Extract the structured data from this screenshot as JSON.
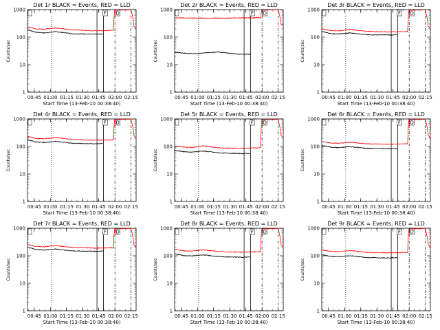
{
  "colors": {
    "events": "#000000",
    "lld": "#ff0000",
    "axes": "#000000",
    "background": "#ffffff"
  },
  "common": {
    "ylabel": "Counts/sec",
    "xlabel": "Start Time (13-Feb-10 00:38:40)",
    "x_tick_labels": [
      "00:45",
      "01:00",
      "01:15",
      "01:30",
      "01:45",
      "02:00",
      "02:15"
    ],
    "y_tick_labels": [
      "1",
      "10",
      "100",
      "1000"
    ],
    "marker_labels": {
      "f_label": "F",
      "d_label": "D"
    }
  },
  "chart_data": [
    {
      "type": "line",
      "title": "Det 1r BLACK = Events, RED = LLD",
      "x_unit": "minutes since 00:38:40",
      "xlim": [
        0,
        101
      ],
      "ylim": [
        1,
        1000
      ],
      "y_scale": "log",
      "grid": false,
      "series": [
        {
          "name": "Events",
          "color": "#000000",
          "x": [
            0,
            8,
            16,
            26,
            42,
            63,
            70
          ],
          "y": [
            185,
            150,
            142,
            158,
            133,
            128,
            130
          ]
        },
        {
          "name": "LLD",
          "color": "#ff0000",
          "x": [
            0,
            8,
            16,
            26,
            42,
            63,
            80,
            81,
            88,
            96,
            99,
            101
          ],
          "y": [
            235,
            200,
            195,
            215,
            185,
            170,
            178,
            950,
            960,
            980,
            250,
            200
          ]
        }
      ],
      "markers": {
        "dotted": [
          22.3
        ],
        "solid": [
          64.6,
          70.6
        ],
        "dashdot": [
          81.3,
          96.3
        ]
      }
    },
    {
      "type": "line",
      "title": "Det 2r BLACK = Events, RED = LLD",
      "x_unit": "minutes since 00:38:40",
      "xlim": [
        0,
        101
      ],
      "ylim": [
        1,
        1000
      ],
      "y_scale": "log",
      "grid": false,
      "series": [
        {
          "name": "Events",
          "color": "#000000",
          "x": [
            0,
            10,
            20,
            30,
            40,
            50,
            60,
            70
          ],
          "y": [
            28,
            26,
            25,
            27,
            29,
            26,
            24,
            24
          ]
        },
        {
          "name": "LLD",
          "color": "#ff0000",
          "x": [
            0,
            16,
            40,
            63,
            80,
            81,
            88,
            96,
            99,
            101
          ],
          "y": [
            500,
            495,
            490,
            500,
            505,
            960,
            970,
            990,
            300,
            260
          ]
        }
      ],
      "markers": {
        "dotted": [
          22.3
        ],
        "solid": [
          64.6,
          70.6
        ],
        "dashdot": [
          81.3,
          96.3
        ]
      }
    },
    {
      "type": "line",
      "title": "Det 3r BLACK = Events, RED = LLD",
      "x_unit": "minutes since 00:38:40",
      "xlim": [
        0,
        101
      ],
      "ylim": [
        1,
        1000
      ],
      "y_scale": "log",
      "grid": false,
      "series": [
        {
          "name": "Events",
          "color": "#000000",
          "x": [
            0,
            8,
            16,
            26,
            42,
            63,
            70
          ],
          "y": [
            160,
            135,
            130,
            142,
            122,
            120,
            122
          ]
        },
        {
          "name": "LLD",
          "color": "#ff0000",
          "x": [
            0,
            8,
            16,
            26,
            42,
            63,
            80,
            81,
            88,
            96,
            99,
            101
          ],
          "y": [
            200,
            175,
            170,
            190,
            162,
            155,
            160,
            950,
            960,
            980,
            250,
            200
          ]
        }
      ],
      "markers": {
        "dotted": [
          22.3
        ],
        "solid": [
          64.6,
          70.6
        ],
        "dashdot": [
          81.3,
          96.3
        ]
      }
    },
    {
      "type": "line",
      "title": "Det 4r BLACK = Events, RED = LLD",
      "x_unit": "minutes since 00:38:40",
      "xlim": [
        0,
        101
      ],
      "ylim": [
        1,
        1000
      ],
      "y_scale": "log",
      "grid": false,
      "series": [
        {
          "name": "Events",
          "color": "#000000",
          "x": [
            0,
            8,
            16,
            26,
            42,
            63,
            70
          ],
          "y": [
            175,
            145,
            140,
            152,
            130,
            125,
            128
          ]
        },
        {
          "name": "LLD",
          "color": "#ff0000",
          "x": [
            0,
            8,
            16,
            26,
            42,
            63,
            80,
            81,
            88,
            96,
            99,
            101
          ],
          "y": [
            230,
            195,
            190,
            210,
            180,
            168,
            175,
            950,
            960,
            980,
            250,
            200
          ]
        }
      ],
      "markers": {
        "dotted": [
          22.3
        ],
        "solid": [
          64.6,
          70.6
        ],
        "dashdot": [
          81.3,
          96.3
        ]
      }
    },
    {
      "type": "line",
      "title": "Det 5r BLACK = Events, RED = LLD",
      "x_unit": "minutes since 00:38:40",
      "xlim": [
        0,
        101
      ],
      "ylim": [
        1,
        1000
      ],
      "y_scale": "log",
      "grid": false,
      "series": [
        {
          "name": "Events",
          "color": "#000000",
          "x": [
            0,
            8,
            16,
            26,
            42,
            63,
            70
          ],
          "y": [
            72,
            65,
            62,
            68,
            58,
            55,
            56
          ]
        },
        {
          "name": "LLD",
          "color": "#ff0000",
          "x": [
            0,
            8,
            16,
            26,
            42,
            63,
            80,
            81,
            88,
            96,
            99,
            101
          ],
          "y": [
            105,
            95,
            92,
            105,
            88,
            85,
            90,
            920,
            940,
            960,
            250,
            200
          ]
        }
      ],
      "markers": {
        "dotted": [
          22.3
        ],
        "solid": [
          64.6,
          70.6
        ],
        "dashdot": [
          81.3,
          96.3
        ]
      }
    },
    {
      "type": "line",
      "title": "Det 6r BLACK = Events, RED = LLD",
      "x_unit": "minutes since 00:38:40",
      "xlim": [
        0,
        101
      ],
      "ylim": [
        1,
        1000
      ],
      "y_scale": "log",
      "grid": false,
      "series": [
        {
          "name": "Events",
          "color": "#000000",
          "x": [
            0,
            8,
            16,
            26,
            42,
            63,
            70
          ],
          "y": [
            108,
            95,
            90,
            98,
            85,
            82,
            84
          ]
        },
        {
          "name": "LLD",
          "color": "#ff0000",
          "x": [
            0,
            8,
            16,
            26,
            42,
            63,
            80,
            81,
            88,
            96,
            99,
            101
          ],
          "y": [
            150,
            135,
            130,
            142,
            125,
            120,
            125,
            930,
            950,
            970,
            250,
            200
          ]
        }
      ],
      "markers": {
        "dotted": [
          22.3
        ],
        "solid": [
          64.6,
          70.6
        ],
        "dashdot": [
          81.3,
          96.3
        ]
      }
    },
    {
      "type": "line",
      "title": "Det 7r BLACK = Events, RED = LLD",
      "x_unit": "minutes since 00:38:40",
      "xlim": [
        0,
        101
      ],
      "ylim": [
        1,
        1000
      ],
      "y_scale": "log",
      "grid": false,
      "series": [
        {
          "name": "Events",
          "color": "#000000",
          "x": [
            0,
            8,
            16,
            26,
            42,
            63,
            70
          ],
          "y": [
            200,
            168,
            162,
            175,
            150,
            145,
            148
          ]
        },
        {
          "name": "LLD",
          "color": "#ff0000",
          "x": [
            0,
            8,
            16,
            26,
            42,
            63,
            80,
            81,
            88,
            96,
            99,
            101
          ],
          "y": [
            255,
            220,
            212,
            232,
            200,
            190,
            195,
            950,
            960,
            980,
            250,
            200
          ]
        }
      ],
      "markers": {
        "dotted": [
          22.3
        ],
        "solid": [
          64.6,
          70.6
        ],
        "dashdot": [
          81.3,
          96.3
        ]
      }
    },
    {
      "type": "line",
      "title": "Det 8r BLACK = Events, RED = LLD",
      "x_unit": "minutes since 00:38:40",
      "xlim": [
        0,
        101
      ],
      "ylim": [
        1,
        1000
      ],
      "y_scale": "log",
      "grid": false,
      "series": [
        {
          "name": "Events",
          "color": "#000000",
          "x": [
            0,
            8,
            16,
            26,
            42,
            63,
            70
          ],
          "y": [
            118,
            102,
            98,
            108,
            92,
            88,
            90
          ]
        },
        {
          "name": "LLD",
          "color": "#ff0000",
          "x": [
            0,
            8,
            16,
            26,
            42,
            63,
            80,
            81,
            88,
            96,
            99,
            101
          ],
          "y": [
            175,
            152,
            148,
            165,
            140,
            135,
            140,
            940,
            955,
            975,
            250,
            200
          ]
        }
      ],
      "markers": {
        "dotted": [
          22.3
        ],
        "solid": [
          64.6,
          70.6
        ],
        "dashdot": [
          81.3,
          96.3
        ]
      }
    },
    {
      "type": "line",
      "title": "Det 9r BLACK = Events, RED = LLD",
      "x_unit": "minutes since 00:38:40",
      "xlim": [
        0,
        101
      ],
      "ylim": [
        1,
        1000
      ],
      "y_scale": "log",
      "grid": false,
      "series": [
        {
          "name": "Events",
          "color": "#000000",
          "x": [
            0,
            8,
            16,
            26,
            42,
            63,
            70
          ],
          "y": [
            108,
            95,
            92,
            100,
            86,
            84,
            86
          ]
        },
        {
          "name": "LLD",
          "color": "#ff0000",
          "x": [
            0,
            8,
            16,
            26,
            42,
            63,
            80,
            81,
            88,
            96,
            99,
            101
          ],
          "y": [
            165,
            145,
            140,
            155,
            132,
            128,
            132,
            940,
            955,
            975,
            250,
            200
          ]
        }
      ],
      "markers": {
        "dotted": [
          22.3
        ],
        "solid": [
          64.6,
          70.6
        ],
        "dashdot": [
          81.3,
          96.3
        ]
      }
    }
  ]
}
